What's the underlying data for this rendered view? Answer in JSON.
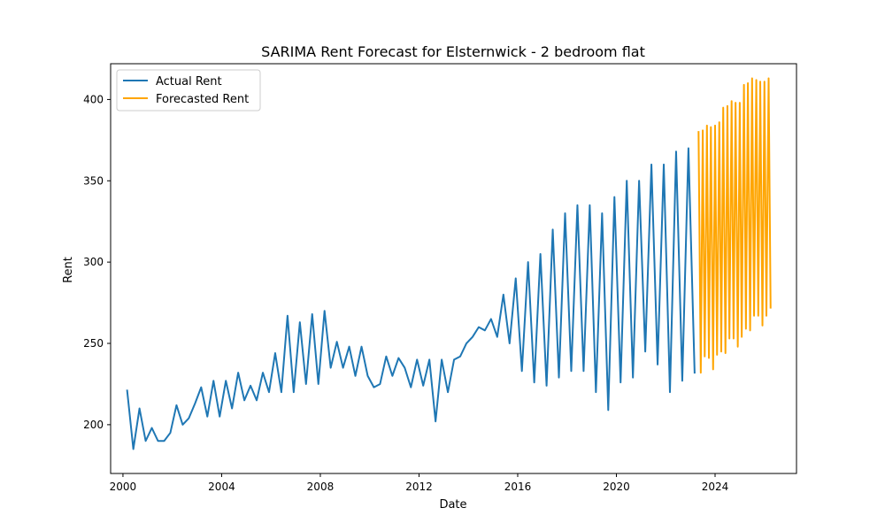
{
  "chart_data": {
    "type": "line",
    "title": "SARIMA Rent Forecast for Elsternwick - 2 bedroom flat",
    "xlabel": "Date",
    "ylabel": "Rent",
    "xlim": [
      1999.5,
      2027.3
    ],
    "ylim": [
      170,
      422
    ],
    "x_ticks": [
      2000,
      2004,
      2008,
      2012,
      2016,
      2020,
      2024
    ],
    "y_ticks": [
      200,
      250,
      300,
      350,
      400
    ],
    "grid": false,
    "legend": "top-left",
    "series": [
      {
        "name": "Actual Rent",
        "color": "#1f77b4",
        "x": [
          2000.17,
          2000.42,
          2000.67,
          2000.92,
          2001.17,
          2001.42,
          2001.67,
          2001.92,
          2002.17,
          2002.42,
          2002.67,
          2002.92,
          2003.17,
          2003.42,
          2003.67,
          2003.92,
          2004.17,
          2004.42,
          2004.67,
          2004.92,
          2005.17,
          2005.42,
          2005.67,
          2005.92,
          2006.17,
          2006.42,
          2006.67,
          2006.92,
          2007.17,
          2007.42,
          2007.67,
          2007.92,
          2008.17,
          2008.42,
          2008.67,
          2008.92,
          2009.17,
          2009.42,
          2009.67,
          2009.92,
          2010.17,
          2010.42,
          2010.67,
          2010.92,
          2011.17,
          2011.42,
          2011.67,
          2011.92,
          2012.17,
          2012.42,
          2012.67,
          2012.92,
          2013.17,
          2013.42,
          2013.67,
          2013.92,
          2014.17,
          2014.42,
          2014.67,
          2014.92,
          2015.17,
          2015.42,
          2015.67,
          2015.92,
          2016.17,
          2016.42,
          2016.67,
          2016.92,
          2017.17,
          2017.42,
          2017.67,
          2017.92,
          2018.17,
          2018.42,
          2018.67,
          2018.92,
          2019.17,
          2019.42,
          2019.67,
          2019.92,
          2020.17,
          2020.42,
          2020.67,
          2020.92,
          2021.17,
          2021.42,
          2021.67,
          2021.92,
          2022.17,
          2022.42,
          2022.67,
          2022.92,
          2023.17
        ],
        "values": [
          221,
          185,
          210,
          190,
          198,
          190,
          190,
          195,
          212,
          200,
          204,
          213,
          223,
          205,
          227,
          205,
          227,
          210,
          232,
          215,
          224,
          215,
          232,
          220,
          244,
          220,
          267,
          220,
          263,
          225,
          268,
          225,
          270,
          235,
          251,
          235,
          248,
          230,
          248,
          230,
          223,
          225,
          242,
          230,
          241,
          235,
          223,
          240,
          224,
          240,
          202,
          240,
          220,
          240,
          242,
          250,
          254,
          260,
          258,
          265,
          254,
          280,
          250,
          290,
          233,
          300,
          226,
          305,
          224,
          320,
          229,
          330,
          233,
          335,
          233,
          335,
          220,
          330,
          209,
          340,
          226,
          350,
          229,
          350,
          245,
          360,
          237,
          360,
          220,
          368,
          227,
          370,
          232
        ]
      },
      {
        "name": "Forecasted Rent",
        "color": "#ffa500",
        "x": [
          2023.33,
          2023.42,
          2023.5,
          2023.58,
          2023.67,
          2023.75,
          2023.83,
          2023.92,
          2024.0,
          2024.08,
          2024.17,
          2024.25,
          2024.33,
          2024.42,
          2024.5,
          2024.58,
          2024.67,
          2024.75,
          2024.83,
          2024.92,
          2025.0,
          2025.08,
          2025.17,
          2025.25,
          2025.33,
          2025.42,
          2025.5,
          2025.58,
          2025.67,
          2025.75,
          2025.83,
          2025.92,
          2026.0,
          2026.08,
          2026.17,
          2026.25
        ],
        "values": [
          380,
          232,
          381,
          242,
          384,
          241,
          383,
          234,
          384,
          243,
          386,
          245,
          395,
          244,
          396,
          253,
          399,
          253,
          398,
          248,
          398,
          254,
          409,
          259,
          410,
          258,
          413,
          267,
          412,
          267,
          411,
          261,
          411,
          267,
          413,
          272
        ]
      }
    ]
  }
}
